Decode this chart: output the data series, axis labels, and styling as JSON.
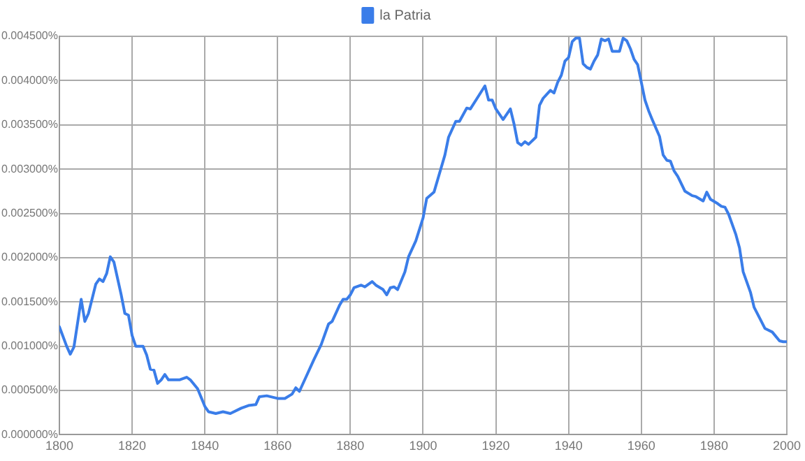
{
  "chart_data": {
    "type": "line",
    "x": [
      1800,
      1802,
      1803,
      1804,
      1806,
      1807,
      1808,
      1810,
      1811,
      1812,
      1813,
      1814,
      1815,
      1817,
      1818,
      1819,
      1820,
      1821,
      1823,
      1824,
      1825,
      1826,
      1827,
      1828,
      1829,
      1830,
      1833,
      1835,
      1836,
      1838,
      1840,
      1841,
      1843,
      1845,
      1847,
      1850,
      1852,
      1854,
      1855,
      1857,
      1860,
      1862,
      1864,
      1865,
      1866,
      1868,
      1870,
      1872,
      1874,
      1875,
      1877,
      1878,
      1879,
      1880,
      1881,
      1883,
      1884,
      1886,
      1887,
      1889,
      1890,
      1891,
      1892,
      1893,
      1895,
      1896,
      1898,
      1900,
      1901,
      1903,
      1905,
      1906,
      1907,
      1909,
      1910,
      1912,
      1913,
      1915,
      1917,
      1918,
      1919,
      1920,
      1922,
      1924,
      1925,
      1926,
      1927,
      1928,
      1929,
      1931,
      1932,
      1933,
      1935,
      1936,
      1937,
      1938,
      1939,
      1940,
      1941,
      1942,
      1943,
      1944,
      1945,
      1946,
      1947,
      1948,
      1949,
      1950,
      1951,
      1952,
      1953,
      1954,
      1955,
      1956,
      1957,
      1958,
      1959,
      1960,
      1961,
      1962,
      1963,
      1965,
      1966,
      1967,
      1968,
      1969,
      1970,
      1972,
      1974,
      1975,
      1977,
      1978,
      1979,
      1981,
      1982,
      1983,
      1984,
      1986,
      1987,
      1988,
      1990,
      1991,
      1993,
      1994,
      1996,
      1998,
      1999,
      2000
    ],
    "series": [
      {
        "name": "la Patria",
        "color": "#3a7de9",
        "values": [
          0.00122,
          0.001,
          0.00091,
          0.00099,
          0.00153,
          0.00128,
          0.00137,
          0.0017,
          0.00176,
          0.00173,
          0.00182,
          0.00201,
          0.00195,
          0.00158,
          0.00137,
          0.00135,
          0.00112,
          0.001,
          0.001,
          0.0009,
          0.00074,
          0.00073,
          0.00058,
          0.00062,
          0.00068,
          0.00062,
          0.00062,
          0.00065,
          0.00062,
          0.00052,
          0.00032,
          0.00026,
          0.00024,
          0.00026,
          0.00024,
          0.0003,
          0.00033,
          0.00034,
          0.00043,
          0.00044,
          0.00041,
          0.00041,
          0.00046,
          0.00053,
          0.00049,
          0.00067,
          0.00085,
          0.00102,
          0.00125,
          0.00128,
          0.00146,
          0.00153,
          0.00153,
          0.00158,
          0.00166,
          0.00169,
          0.00167,
          0.00173,
          0.00169,
          0.00164,
          0.00158,
          0.00166,
          0.00167,
          0.00164,
          0.00184,
          0.00201,
          0.00219,
          0.00245,
          0.00267,
          0.00274,
          0.00302,
          0.00316,
          0.00336,
          0.00354,
          0.00354,
          0.00369,
          0.00368,
          0.00381,
          0.00394,
          0.00378,
          0.00378,
          0.00368,
          0.00356,
          0.00368,
          0.00351,
          0.0033,
          0.00327,
          0.00331,
          0.00328,
          0.00336,
          0.00372,
          0.0038,
          0.00389,
          0.00386,
          0.00398,
          0.00406,
          0.00422,
          0.00426,
          0.00444,
          0.00448,
          0.00448,
          0.00419,
          0.00415,
          0.00413,
          0.00422,
          0.00429,
          0.00447,
          0.00445,
          0.00447,
          0.00433,
          0.00433,
          0.00433,
          0.00448,
          0.00445,
          0.00436,
          0.00424,
          0.00418,
          0.00398,
          0.00378,
          0.00366,
          0.00356,
          0.00337,
          0.00316,
          0.0031,
          0.00309,
          0.00298,
          0.00292,
          0.00275,
          0.0027,
          0.00269,
          0.00264,
          0.00274,
          0.00266,
          0.00261,
          0.00258,
          0.00257,
          0.00249,
          0.00226,
          0.00211,
          0.00184,
          0.00161,
          0.00144,
          0.00128,
          0.0012,
          0.00116,
          0.00106,
          0.00105,
          0.00105
        ]
      }
    ],
    "xlim": [
      1800,
      2000
    ],
    "xticks": [
      1800,
      1820,
      1840,
      1860,
      1880,
      1900,
      1920,
      1940,
      1960,
      1980,
      2000
    ],
    "ylim": [
      0,
      0.0045
    ],
    "yticks": [
      {
        "value": 0,
        "label": "0.000000%"
      },
      {
        "value": 0.0005,
        "label": "0.000500%"
      },
      {
        "value": 0.001,
        "label": "0.001000%"
      },
      {
        "value": 0.0015,
        "label": "0.001500%"
      },
      {
        "value": 0.002,
        "label": "0.002000%"
      },
      {
        "value": 0.0025,
        "label": "0.002500%"
      },
      {
        "value": 0.003,
        "label": "0.003000%"
      },
      {
        "value": 0.0035,
        "label": "0.003500%"
      },
      {
        "value": 0.004,
        "label": "0.004000%"
      },
      {
        "value": 0.0045,
        "label": "0.004500%"
      }
    ],
    "grid": true,
    "legend": "top",
    "marker": "none",
    "line_style": "solid"
  }
}
